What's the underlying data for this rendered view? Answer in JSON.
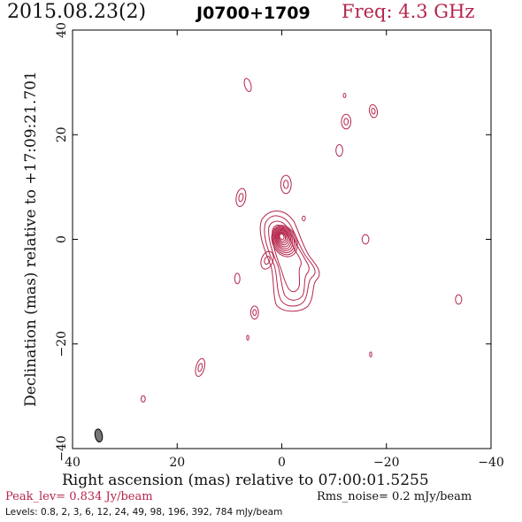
{
  "header": {
    "date": "2015.08.23(2)",
    "source": "J0700+1709",
    "frequency": "Freq: 4.3 GHz"
  },
  "colors": {
    "contour": "#b5254b",
    "beam_fill": "#777777",
    "axis": "#000000"
  },
  "chart_data": {
    "type": "contour",
    "xlabel": "Right ascension (mas) relative to 07:00:01.5255",
    "ylabel": "Declination (mas) relative to +17:09:21.701",
    "xlim": [
      40,
      -40
    ],
    "ylim": [
      -40,
      40
    ],
    "x_ticks": [
      "40",
      "20",
      "0",
      "−20",
      "−40"
    ],
    "x_tick_values": [
      40,
      20,
      0,
      -20,
      -40
    ],
    "y_ticks": [
      "−40",
      "−20",
      "0",
      "20",
      "40"
    ],
    "y_tick_values": [
      -40,
      -20,
      0,
      20,
      40
    ],
    "peak_level": "Peak_lev=  0.834 Jy/beam",
    "rms_noise": "Rms_noise=  0.2 mJy/beam",
    "levels_text": "Levels: 0.8,   2,   3,   6,  12,  24,  49,  98, 196, 392, 784 mJy/beam",
    "levels_mjy": [
      0.8,
      2,
      3,
      6,
      12,
      24,
      49,
      98,
      196,
      392,
      784
    ],
    "core": {
      "ra": 0,
      "dec": 0.5
    },
    "beam": {
      "ra": 35,
      "dec": -37.5,
      "major_mas": 2.5,
      "minor_mas": 1.4
    },
    "features": [
      {
        "ra": 6.5,
        "dec": 29.5,
        "w": 1.2,
        "h": 2.6,
        "rot": -15
      },
      {
        "ra": -12.3,
        "dec": 22.5,
        "w": 1.8,
        "h": 2.8,
        "rot": 0
      },
      {
        "ra": -12.0,
        "dec": 27.5,
        "w": 0.5,
        "h": 0.8,
        "rot": 0
      },
      {
        "ra": -17.5,
        "dec": 24.5,
        "w": 1.5,
        "h": 2.5,
        "rot": -10
      },
      {
        "ra": -11.0,
        "dec": 17.0,
        "w": 1.3,
        "h": 2.2,
        "rot": 0
      },
      {
        "ra": 7.8,
        "dec": 8.0,
        "w": 1.8,
        "h": 3.5,
        "rot": 10
      },
      {
        "ra": -0.8,
        "dec": 10.5,
        "w": 2.0,
        "h": 3.5,
        "rot": 0
      },
      {
        "ra": -4.2,
        "dec": 4.0,
        "w": 0.6,
        "h": 0.9,
        "rot": 0
      },
      {
        "ra": -16.0,
        "dec": 0.0,
        "w": 1.3,
        "h": 1.8,
        "rot": 0
      },
      {
        "ra": 2.8,
        "dec": -4.0,
        "w": 2.2,
        "h": 3.5,
        "rot": 20
      },
      {
        "ra": 8.5,
        "dec": -7.5,
        "w": 1.0,
        "h": 2.0,
        "rot": 0
      },
      {
        "ra": 5.2,
        "dec": -14.0,
        "w": 1.5,
        "h": 2.5,
        "rot": 0
      },
      {
        "ra": -33.8,
        "dec": -11.5,
        "w": 1.2,
        "h": 1.8,
        "rot": 0
      },
      {
        "ra": 6.5,
        "dec": -18.8,
        "w": 0.4,
        "h": 0.9,
        "rot": 0
      },
      {
        "ra": -17.0,
        "dec": -22.0,
        "w": 0.4,
        "h": 0.9,
        "rot": 0
      },
      {
        "ra": 15.6,
        "dec": -24.5,
        "w": 1.6,
        "h": 3.5,
        "rot": 15
      },
      {
        "ra": 26.5,
        "dec": -30.5,
        "w": 0.8,
        "h": 1.2,
        "rot": 0
      }
    ]
  }
}
